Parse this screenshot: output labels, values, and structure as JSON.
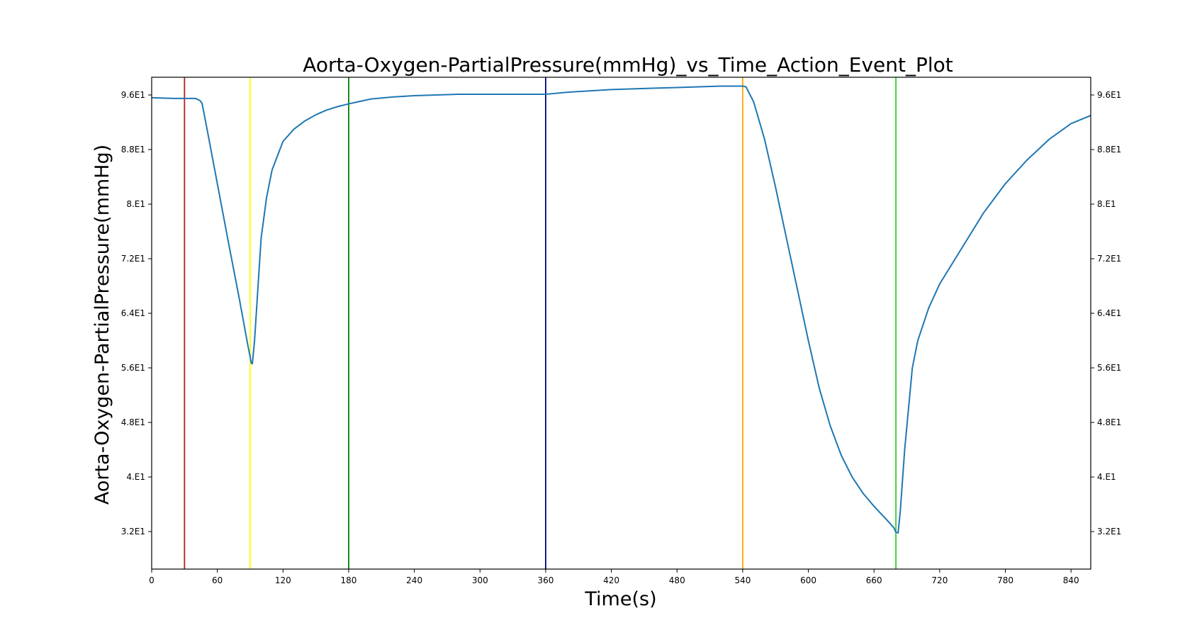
{
  "chart_data": {
    "type": "line",
    "title": "Aorta-Oxygen-PartialPressure(mmHg)_vs_Time_Action_Event_Plot",
    "xlabel": "Time(s)",
    "ylabel": "Aorta-Oxygen-PartialPressure(mmHg)",
    "xlim": [
      0,
      858
    ],
    "ylim": [
      26.5,
      98.6
    ],
    "x_ticks": [
      0,
      60,
      120,
      180,
      240,
      300,
      360,
      420,
      480,
      540,
      600,
      660,
      720,
      780,
      840
    ],
    "x_tick_labels": [
      "0",
      "60",
      "120",
      "180",
      "240",
      "300",
      "360",
      "420",
      "480",
      "540",
      "600",
      "660",
      "720",
      "780",
      "840"
    ],
    "y_ticks": [
      32,
      40,
      48,
      56,
      64,
      72,
      80,
      88,
      96
    ],
    "y_tick_labels": [
      "3.2E1",
      "4.E1",
      "4.8E1",
      "5.6E1",
      "6.4E1",
      "7.2E1",
      "8.E1",
      "8.8E1",
      "9.6E1"
    ],
    "grid": false,
    "legend": "none",
    "series": [
      {
        "color": "#1f77b4",
        "x": [
          0,
          20,
          30,
          40,
          44,
          46,
          50,
          60,
          70,
          80,
          88,
          90,
          91,
          92,
          94,
          98,
          100,
          105,
          110,
          120,
          130,
          140,
          150,
          160,
          170,
          180,
          200,
          220,
          240,
          260,
          280,
          300,
          320,
          340,
          360,
          380,
          400,
          420,
          440,
          460,
          480,
          500,
          520,
          530,
          540,
          543,
          550,
          560,
          570,
          580,
          590,
          600,
          610,
          620,
          630,
          640,
          650,
          660,
          670,
          678,
          680,
          682,
          684,
          688,
          695,
          700,
          710,
          720,
          740,
          760,
          780,
          800,
          820,
          840,
          858
        ],
        "y": [
          95.6,
          95.5,
          95.5,
          95.5,
          95.2,
          94.8,
          91.5,
          83,
          74.5,
          66.2,
          59.2,
          57.6,
          56.7,
          56.6,
          60,
          70,
          75,
          81,
          85,
          89.2,
          91,
          92.2,
          93.1,
          93.8,
          94.3,
          94.7,
          95.4,
          95.7,
          95.9,
          96,
          96.1,
          96.1,
          96.1,
          96.1,
          96.1,
          96.4,
          96.6,
          96.8,
          96.9,
          97,
          97.1,
          97.2,
          97.3,
          97.3,
          97.3,
          97.2,
          95,
          89.5,
          82.5,
          75,
          67.5,
          60,
          53,
          47.5,
          43.2,
          40,
          37.6,
          35.7,
          34,
          32.6,
          31.9,
          31.8,
          35,
          44,
          56,
          60,
          64.8,
          68.3,
          73.5,
          78.7,
          83,
          86.5,
          89.5,
          91.8,
          93
        ]
      }
    ],
    "event_lines": [
      {
        "x": 30,
        "color": "#b22222"
      },
      {
        "x": 90,
        "color": "#ffff00"
      },
      {
        "x": 180,
        "color": "#008000"
      },
      {
        "x": 360,
        "color": "#000080"
      },
      {
        "x": 540,
        "color": "#ffa500"
      },
      {
        "x": 680,
        "color": "#32cd32"
      }
    ]
  }
}
